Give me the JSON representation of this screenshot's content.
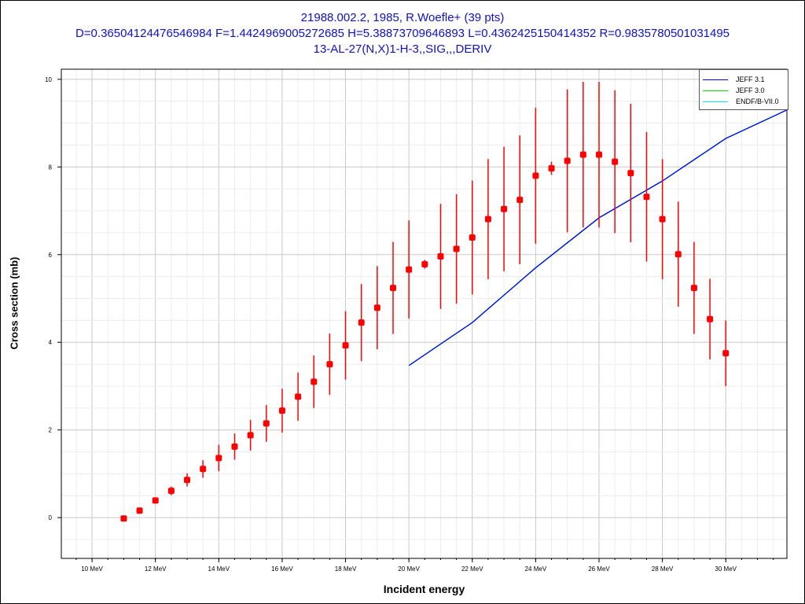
{
  "title_lines": [
    "21988.002.2, 1985, R.Woefle+ (39 pts)",
    "D=0.36504124476546984 F=1.4424969005272685 H=5.38873709646893 L=0.4362425150414352 R=0.9835780501031495",
    "13-AL-27(N,X)1-H-3,,SIG,,,DERIV"
  ],
  "chart_data": {
    "type": "scatter",
    "title": "21988.002.2, 1985, R.Woefle+ (39 pts)",
    "xlabel": "Incident energy",
    "ylabel": "Cross section (mb)",
    "xlim": [
      9.03,
      31.93
    ],
    "ylim": [
      -0.93,
      10.23
    ],
    "grid": true,
    "legend_position": "top-right",
    "x_ticks": [
      10,
      12,
      14,
      16,
      18,
      20,
      22,
      24,
      26,
      28,
      30
    ],
    "x_tick_labels": [
      "10 MeV",
      "12 MeV",
      "14 MeV",
      "16 MeV",
      "18 MeV",
      "20 MeV",
      "22 MeV",
      "24 MeV",
      "26 MeV",
      "28 MeV",
      "30 MeV"
    ],
    "y_ticks": [
      0,
      2,
      4,
      6,
      8,
      10
    ],
    "y_tick_labels": [
      "0",
      "2",
      "4",
      "6",
      "8",
      "10"
    ],
    "experimental": {
      "name": "21988.002.2",
      "color": "#ff0000",
      "x": [
        11,
        11.5,
        12,
        12.5,
        13,
        13.5,
        14,
        14.5,
        15,
        15.5,
        16,
        16.5,
        17,
        17.5,
        18,
        18.5,
        19,
        19.5,
        20,
        20.5,
        21,
        21.5,
        22,
        22.5,
        23,
        23.5,
        24,
        24.5,
        25,
        25.5,
        26,
        26.5,
        27,
        27.5,
        28,
        28.5,
        29,
        29.5,
        30
      ],
      "y": [
        -0.02,
        0.16,
        0.39,
        0.61,
        0.86,
        1.11,
        1.36,
        1.62,
        1.88,
        2.15,
        2.44,
        2.76,
        3.1,
        3.5,
        3.93,
        4.45,
        4.79,
        5.24,
        5.66,
        5.78,
        5.96,
        6.13,
        6.39,
        6.81,
        7.04,
        7.25,
        7.8,
        7.97,
        8.14,
        8.28,
        8.28,
        8.12,
        7.86,
        7.32,
        6.81,
        6.01,
        5.24,
        4.53,
        3.75
      ],
      "yerr": [
        0.05,
        0.05,
        0.05,
        0.1,
        0.15,
        0.2,
        0.3,
        0.3,
        0.35,
        0.42,
        0.5,
        0.55,
        0.6,
        0.7,
        0.78,
        0.88,
        0.95,
        1.05,
        1.12,
        0.1,
        1.2,
        1.25,
        1.3,
        1.37,
        1.42,
        1.47,
        1.55,
        0.15,
        1.63,
        1.66,
        1.66,
        1.63,
        1.58,
        1.48,
        1.37,
        1.2,
        1.05,
        0.92,
        0.75
      ]
    },
    "series": [
      {
        "name": "ENDF/B-VII.0",
        "color": "#00e5ff",
        "x": [
          20,
          22,
          24,
          26,
          28,
          30,
          31.93
        ],
        "y": [
          3.47,
          4.45,
          5.7,
          6.84,
          7.68,
          8.65,
          9.3
        ]
      },
      {
        "name": "JEFF 3.0",
        "color": "#00dd00",
        "x": [
          20,
          22,
          24,
          26,
          28,
          30,
          31.93
        ],
        "y": [
          3.47,
          4.45,
          5.7,
          6.84,
          7.68,
          8.65,
          9.3
        ]
      },
      {
        "name": "JEFF 3.1",
        "color": "#0000ff",
        "x": [
          20,
          22,
          24,
          26,
          28,
          30,
          31.93
        ],
        "y": [
          3.47,
          4.45,
          5.7,
          6.84,
          7.68,
          8.65,
          9.3
        ]
      }
    ],
    "legend": [
      "JEFF 3.1",
      "JEFF 3.0",
      "ENDF/B-VII.0"
    ]
  }
}
